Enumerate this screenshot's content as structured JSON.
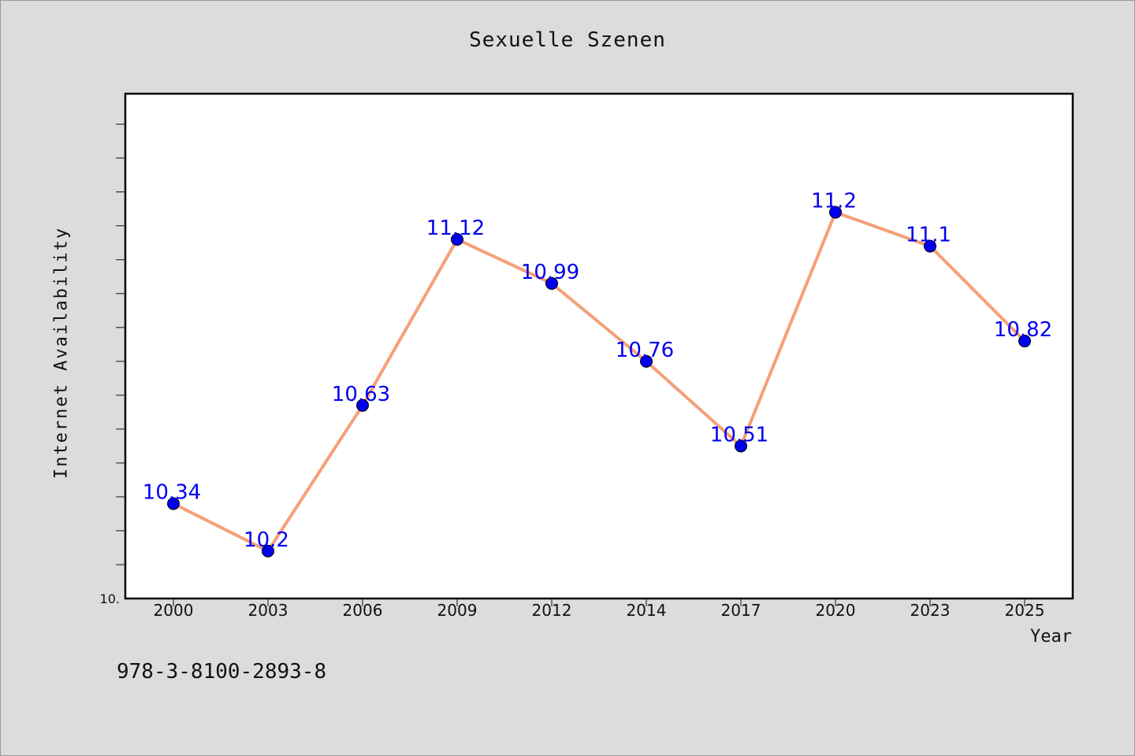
{
  "chart_data": {
    "type": "line",
    "title": "Sexuelle Szenen",
    "xlabel": "Year",
    "ylabel": "Internet Availability",
    "categories": [
      "2000",
      "2003",
      "2006",
      "2009",
      "2012",
      "2014",
      "2017",
      "2020",
      "2023",
      "2025"
    ],
    "values": [
      10.34,
      10.2,
      10.63,
      11.12,
      10.99,
      10.76,
      10.51,
      11.2,
      11.1,
      10.82
    ],
    "data_labels": [
      "10.34",
      "10.2",
      "10.63",
      "11.12",
      "10.99",
      "10.76",
      "10.51",
      "11.2",
      "11.1",
      "10.82"
    ],
    "y_min_label": "10.",
    "ylim": [
      10.06,
      11.55
    ],
    "y_minor_ticks": [
      10.16,
      10.26,
      10.36,
      10.46,
      10.56,
      10.66,
      10.76,
      10.86,
      10.96,
      11.06,
      11.16,
      11.26,
      11.36,
      11.46
    ],
    "grid": false,
    "legend": "none",
    "colors": {
      "line": "#f4a07a",
      "marker": "#0000ee",
      "data_label": "#0000ee",
      "plot_bg": "#ffffff",
      "page_bg": "#dcdcdc"
    }
  },
  "footer": {
    "isbn": "978-3-8100-2893-8"
  }
}
